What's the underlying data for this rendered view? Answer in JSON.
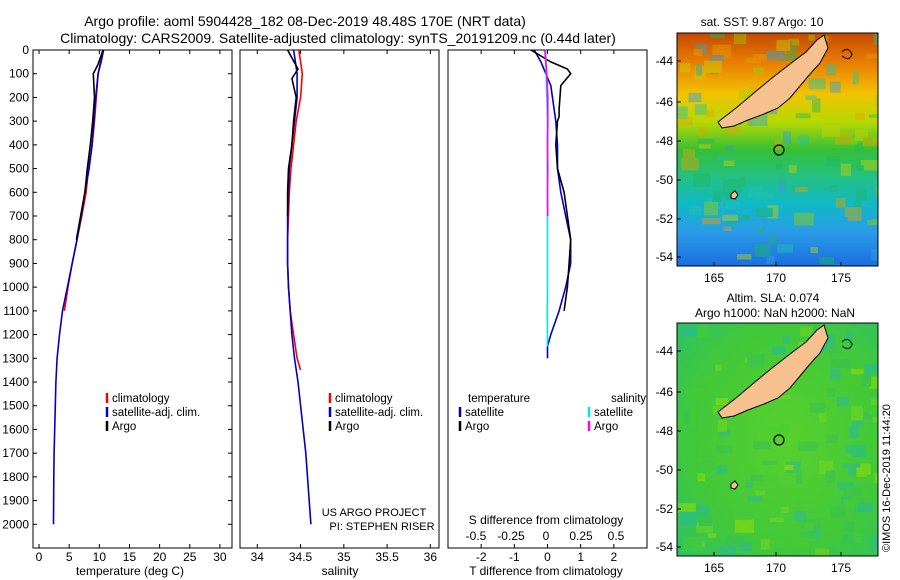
{
  "header": {
    "line1": "Argo profile: aoml 5904428_182 08-Dec-2019 48.48S 170E (NRT data)",
    "line2": "Climatology: CARS2009. Satellite-adjusted climatology: synTS_20191209.nc (0.44d later)"
  },
  "colors": {
    "climatology": "#ff0000",
    "satellite": "#0000cc",
    "argo": "#000000",
    "argo_s": "#ff00ff",
    "satellite_s": "#00e5ee",
    "land": "#f6c08f"
  },
  "chart_data": [
    {
      "type": "line",
      "id": "temperature",
      "xlabel": "temperature (deg C)",
      "ylabel": "",
      "xlim": [
        -1,
        32
      ],
      "ylim": [
        0,
        2100
      ],
      "xticks": [
        "0",
        "5",
        "10",
        "15",
        "20",
        "25",
        "30"
      ],
      "yticks": [
        "0",
        "100",
        "200",
        "300",
        "400",
        "500",
        "600",
        "700",
        "800",
        "900",
        "1000",
        "1100",
        "1200",
        "1300",
        "1400",
        "1500",
        "1600",
        "1700",
        "1800",
        "1900",
        "2000"
      ],
      "legend": [
        "climatology",
        "satellite-adj. clim.",
        "Argo"
      ],
      "series": [
        {
          "name": "climatology",
          "color": "red",
          "x": [
            10.6,
            10.2,
            9.8,
            9.5,
            9.2,
            8.8,
            8.2,
            7.8,
            7.1,
            6.3,
            5.5,
            4.8,
            4.2
          ],
          "y": [
            0,
            50,
            100,
            200,
            300,
            400,
            500,
            600,
            700,
            800,
            900,
            1000,
            1100
          ]
        },
        {
          "name": "satellite-adj. clim.",
          "color": "blue",
          "x": [
            10.7,
            10.3,
            9.8,
            9.4,
            9.1,
            8.8,
            8.3,
            7.6,
            7.0,
            6.3,
            5.5,
            4.7,
            3.9,
            3.4,
            3.0,
            2.8,
            2.7,
            2.6,
            2.5,
            2.45,
            2.4
          ],
          "y": [
            0,
            50,
            100,
            200,
            300,
            400,
            500,
            600,
            700,
            800,
            900,
            1000,
            1100,
            1200,
            1300,
            1400,
            1500,
            1600,
            1700,
            1800,
            2000
          ]
        },
        {
          "name": "Argo",
          "color": "black",
          "x": [
            10.6,
            9.8,
            9.0,
            9.2,
            8.9,
            8.5,
            8.0,
            7.6,
            6.9,
            6.2
          ],
          "y": [
            0,
            60,
            100,
            200,
            300,
            400,
            500,
            600,
            700,
            800
          ]
        }
      ]
    },
    {
      "type": "line",
      "id": "salinity",
      "xlabel": "salinity",
      "ylabel": "",
      "xlim": [
        33.8,
        36.1
      ],
      "ylim": [
        0,
        2100
      ],
      "xticks": [
        "34",
        "34.5",
        "35",
        "35.5",
        "36"
      ],
      "legend": [
        "climatology",
        "satellite-adj. clim.",
        "Argo"
      ],
      "annotations": [
        "US ARGO PROJECT",
        "PI: STEPHEN RISER"
      ],
      "series": [
        {
          "name": "climatology",
          "color": "red",
          "x": [
            34.48,
            34.5,
            34.52,
            34.5,
            34.45,
            34.42,
            34.39,
            34.37,
            34.36,
            34.35,
            34.35,
            34.36,
            34.38,
            34.42,
            34.46,
            34.5
          ],
          "y": [
            0,
            50,
            100,
            200,
            300,
            400,
            500,
            600,
            700,
            800,
            900,
            1000,
            1100,
            1200,
            1300,
            1350
          ]
        },
        {
          "name": "satellite-adj. clim.",
          "color": "blue",
          "x": [
            34.42,
            34.44,
            34.46,
            34.46,
            34.43,
            34.4,
            34.37,
            34.36,
            34.35,
            34.35,
            34.35,
            34.36,
            34.38,
            34.4,
            34.43,
            34.47,
            34.5,
            34.53,
            34.56,
            34.58,
            34.6,
            34.62
          ],
          "y": [
            0,
            50,
            100,
            200,
            300,
            400,
            500,
            600,
            700,
            800,
            900,
            1000,
            1100,
            1200,
            1300,
            1400,
            1500,
            1600,
            1700,
            1800,
            1900,
            2000
          ]
        },
        {
          "name": "Argo",
          "color": "black",
          "x": [
            34.35,
            34.47,
            34.4,
            34.45,
            34.42,
            34.4,
            34.36,
            34.35,
            34.35
          ],
          "y": [
            0,
            80,
            120,
            200,
            300,
            400,
            500,
            600,
            700
          ]
        }
      ]
    },
    {
      "type": "line",
      "id": "difference",
      "xlabel": "T difference from climatology",
      "xlabel2": "S difference from climatology",
      "xlim": [
        -3,
        3
      ],
      "ylim": [
        0,
        2100
      ],
      "xticks": [
        "-2",
        "-1",
        "0",
        "1",
        "2"
      ],
      "xticks_s": [
        "-0.5",
        "-0.25",
        "0",
        "0.25",
        "0.5"
      ],
      "legend_t": {
        "title": "temperature",
        "items": [
          "satellite",
          "Argo"
        ]
      },
      "legend_s": {
        "title": "salinity",
        "items": [
          "satellite",
          "Argo"
        ]
      },
      "series": [
        {
          "name": "T satellite",
          "color": "blue",
          "x": [
            -0.4,
            -0.2,
            0.1,
            0.25,
            0.3,
            0.3,
            0.4,
            0.55,
            0.7,
            0.7,
            0.55,
            0.35,
            0.1,
            0.0,
            0.0
          ],
          "y": [
            0,
            50,
            150,
            300,
            400,
            500,
            600,
            700,
            800,
            900,
            1000,
            1100,
            1200,
            1250,
            1300
          ]
        },
        {
          "name": "T Argo",
          "color": "black",
          "x": [
            -0.5,
            0.1,
            0.6,
            0.7,
            0.4,
            0.35,
            0.35,
            0.3,
            0.25,
            0.3,
            0.5,
            0.6,
            0.7,
            0.65,
            0.6,
            0.5
          ],
          "y": [
            0,
            50,
            80,
            100,
            150,
            250,
            280,
            300,
            400,
            500,
            600,
            700,
            800,
            900,
            1000,
            1100
          ]
        },
        {
          "name": "S satellite",
          "color": "cyan",
          "x": [
            -0.05,
            -0.04,
            -0.02,
            0.0,
            0.0,
            -0.01,
            0.0,
            0.0,
            0.0,
            0.0,
            0.0,
            -0.005,
            0.0
          ],
          "y": [
            0,
            100,
            200,
            300,
            400,
            500,
            600,
            700,
            800,
            900,
            1000,
            1100,
            1250
          ]
        },
        {
          "name": "S Argo",
          "color": "magenta",
          "x": [
            -0.08,
            -0.02,
            0.01,
            0.01,
            0.0,
            0.01,
            0.0,
            0.005
          ],
          "y": [
            0,
            100,
            200,
            300,
            400,
            500,
            600,
            700
          ]
        }
      ]
    }
  ],
  "maps": {
    "top": {
      "title": "sat. SST: 9.87 Argo: 10",
      "yticks": [
        "-44",
        "-46",
        "-48",
        "-50",
        "-52",
        "-54"
      ],
      "xticks": [
        "165",
        "170",
        "175"
      ]
    },
    "bottom": {
      "title1": "Altim. SLA: 0.074",
      "title2": "Argo h1000: NaN h2000: NaN",
      "yticks": [
        "-44",
        "-46",
        "-48",
        "-50",
        "-52",
        "-54"
      ],
      "xticks": [
        "165",
        "170",
        "175"
      ]
    },
    "credit": "©IMOS 16-Dec-2019 11:44:20"
  }
}
